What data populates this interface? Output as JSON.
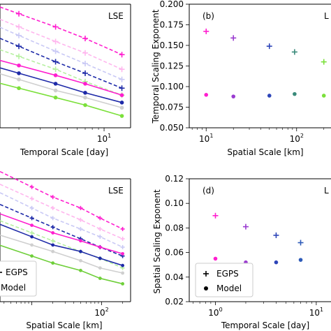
{
  "chart_data": [
    {
      "type": "line",
      "panel": "a",
      "corner_label": "LSE",
      "xlabel": "Temporal Scale [day]",
      "ylabel": "",
      "x_scale": "log",
      "y_scale": "log",
      "x_ticks": [
        {
          "value": 10,
          "base": "10",
          "exp": "1"
        }
      ],
      "y_ticks": [],
      "grid": false,
      "series": [
        {
          "marker": "plus",
          "dash": true,
          "color": "#ff1ecf",
          "x": [
            2,
            4,
            7,
            14
          ],
          "y": [
            1.0,
            0.9,
            0.82,
            0.72
          ]
        },
        {
          "marker": "plus",
          "dash": true,
          "color": "#ffb6ee",
          "x": [
            2,
            4,
            7,
            14
          ],
          "y": [
            0.9,
            0.8,
            0.73,
            0.64
          ]
        },
        {
          "marker": "plus",
          "dash": true,
          "color": "#c9c9f5",
          "x": [
            2,
            4,
            7,
            14
          ],
          "y": [
            0.84,
            0.74,
            0.67,
            0.59
          ]
        },
        {
          "marker": "plus",
          "dash": true,
          "color": "#1e2aa8",
          "x": [
            2,
            4,
            7,
            14
          ],
          "y": [
            0.77,
            0.68,
            0.62,
            0.55
          ]
        },
        {
          "marker": "plus",
          "dash": true,
          "color": "#b6f0a0",
          "x": [
            2,
            4,
            7,
            14
          ],
          "y": [
            0.71,
            0.64,
            0.58,
            0.52
          ]
        },
        {
          "marker": "dot",
          "dash": false,
          "color": "#ff1ecf",
          "x": [
            2,
            4,
            7,
            14
          ],
          "y": [
            0.66,
            0.61,
            0.57,
            0.52
          ]
        },
        {
          "marker": "dot",
          "dash": false,
          "color": "#1e2aa8",
          "x": [
            2,
            4,
            7,
            14
          ],
          "y": [
            0.62,
            0.57,
            0.53,
            0.49
          ]
        },
        {
          "marker": "dot",
          "dash": false,
          "color": "#cfcfcf",
          "x": [
            2,
            4,
            7,
            14
          ],
          "y": [
            0.59,
            0.54,
            0.51,
            0.47
          ]
        },
        {
          "marker": "dot",
          "dash": false,
          "color": "#7be03a",
          "x": [
            2,
            4,
            7,
            14
          ],
          "y": [
            0.55,
            0.51,
            0.48,
            0.44
          ]
        }
      ]
    },
    {
      "type": "scatter",
      "panel": "b",
      "corner_label": "(b)",
      "corner_label_right": "L",
      "xlabel": "Spatial Scale [km]",
      "ylabel": "Temporal Scaling Exponent",
      "x_scale": "log",
      "ylim": [
        0.05,
        0.2
      ],
      "x_ticks": [
        {
          "value": 10,
          "base": "10",
          "exp": "1"
        },
        {
          "value": 100,
          "base": "10",
          "exp": "2"
        }
      ],
      "y_ticks": [
        "0.050",
        "0.075",
        "0.100",
        "0.125",
        "0.150",
        "0.175",
        "0.200"
      ],
      "grid": false,
      "series": [
        {
          "marker": "plus",
          "points": [
            {
              "x": 10,
              "y": 0.167,
              "color": "#ff1ecf"
            },
            {
              "x": 20,
              "y": 0.159,
              "color": "#9a3bd0"
            },
            {
              "x": 50,
              "y": 0.149,
              "color": "#2d45b8"
            },
            {
              "x": 95,
              "y": 0.142,
              "color": "#3a8a7a"
            },
            {
              "x": 200,
              "y": 0.13,
              "color": "#7be03a"
            }
          ]
        },
        {
          "marker": "dot",
          "points": [
            {
              "x": 10,
              "y": 0.09,
              "color": "#ff1ecf"
            },
            {
              "x": 20,
              "y": 0.088,
              "color": "#9a3bd0"
            },
            {
              "x": 50,
              "y": 0.089,
              "color": "#2d45b8"
            },
            {
              "x": 95,
              "y": 0.091,
              "color": "#3a8a7a"
            },
            {
              "x": 200,
              "y": 0.089,
              "color": "#7be03a"
            }
          ]
        }
      ]
    },
    {
      "type": "line",
      "panel": "c",
      "corner_label": "LSE",
      "xlabel": "Spatial Scale [km]",
      "ylabel": "",
      "x_scale": "log",
      "y_scale": "log",
      "x_ticks": [
        {
          "value": 100,
          "base": "10",
          "exp": "2"
        }
      ],
      "y_ticks": [],
      "grid": false,
      "legend": {
        "position": "lower-left",
        "entries": [
          {
            "marker": "plus",
            "label": "EGPS"
          },
          {
            "marker": "dot",
            "label": "Model"
          }
        ]
      },
      "series": [
        {
          "marker": "plus",
          "dash": true,
          "color": "#ff1ecf",
          "x": [
            10,
            20,
            50,
            95,
            200
          ],
          "y": [
            1.0,
            0.93,
            0.86,
            0.8,
            0.74
          ]
        },
        {
          "marker": "plus",
          "dash": true,
          "color": "#ffb6ee",
          "x": [
            10,
            20,
            50,
            95,
            200
          ],
          "y": [
            0.92,
            0.86,
            0.79,
            0.74,
            0.69
          ]
        },
        {
          "marker": "plus",
          "dash": true,
          "color": "#c9c9f5",
          "x": [
            10,
            20,
            50,
            95,
            200
          ],
          "y": [
            0.86,
            0.8,
            0.74,
            0.7,
            0.65
          ]
        },
        {
          "marker": "plus",
          "dash": true,
          "color": "#1e2aa8",
          "x": [
            10,
            20,
            50,
            95,
            200
          ],
          "y": [
            0.8,
            0.75,
            0.69,
            0.65,
            0.61
          ]
        },
        {
          "marker": "plus",
          "dash": true,
          "color": "#b6f0a0",
          "x": [
            10,
            20,
            50,
            95,
            200
          ],
          "y": [
            0.72,
            0.68,
            0.63,
            0.6,
            0.56
          ]
        },
        {
          "marker": "dot",
          "dash": false,
          "color": "#ff1ecf",
          "x": [
            10,
            20,
            50,
            95,
            200
          ],
          "y": [
            0.76,
            0.72,
            0.68,
            0.65,
            0.62
          ]
        },
        {
          "marker": "dot",
          "dash": false,
          "color": "#1e2aa8",
          "x": [
            10,
            20,
            50,
            95,
            200
          ],
          "y": [
            0.7,
            0.66,
            0.63,
            0.6,
            0.57
          ]
        },
        {
          "marker": "dot",
          "dash": false,
          "color": "#cfcfcf",
          "x": [
            10,
            20,
            50,
            95,
            200
          ],
          "y": [
            0.66,
            0.63,
            0.59,
            0.56,
            0.54
          ]
        },
        {
          "marker": "dot",
          "dash": false,
          "color": "#6fcf3a",
          "x": [
            10,
            20,
            50,
            95,
            200
          ],
          "y": [
            0.61,
            0.58,
            0.55,
            0.52,
            0.5
          ]
        }
      ]
    },
    {
      "type": "scatter",
      "panel": "d",
      "corner_label": "(d)",
      "corner_label_right": "L",
      "xlabel": "Temporal Scale [day]",
      "ylabel": "Spatial Scaling Exponent",
      "x_scale": "log",
      "ylim": [
        0.02,
        0.12
      ],
      "x_ticks": [
        {
          "value": 1,
          "base": "10",
          "exp": "0"
        },
        {
          "value": 10,
          "base": "10",
          "exp": "1"
        }
      ],
      "y_ticks": [
        "0.02",
        "0.04",
        "0.06",
        "0.08",
        "0.10",
        "0.12"
      ],
      "grid": false,
      "legend": {
        "position": "lower-left",
        "entries": [
          {
            "marker": "plus",
            "label": "EGPS"
          },
          {
            "marker": "dot",
            "label": "Model"
          }
        ]
      },
      "series": [
        {
          "marker": "plus",
          "points": [
            {
              "x": 1,
              "y": 0.09,
              "color": "#ff1ecf"
            },
            {
              "x": 2,
              "y": 0.081,
              "color": "#9a3bd0"
            },
            {
              "x": 4,
              "y": 0.074,
              "color": "#2d45b8"
            },
            {
              "x": 7,
              "y": 0.068,
              "color": "#2d5ab8"
            }
          ]
        },
        {
          "marker": "dot",
          "points": [
            {
              "x": 1,
              "y": 0.055,
              "color": "#ff1ecf"
            },
            {
              "x": 2,
              "y": 0.052,
              "color": "#9a3bd0"
            },
            {
              "x": 4,
              "y": 0.052,
              "color": "#2d45b8"
            },
            {
              "x": 7,
              "y": 0.054,
              "color": "#2d5ab8"
            }
          ]
        }
      ]
    }
  ]
}
